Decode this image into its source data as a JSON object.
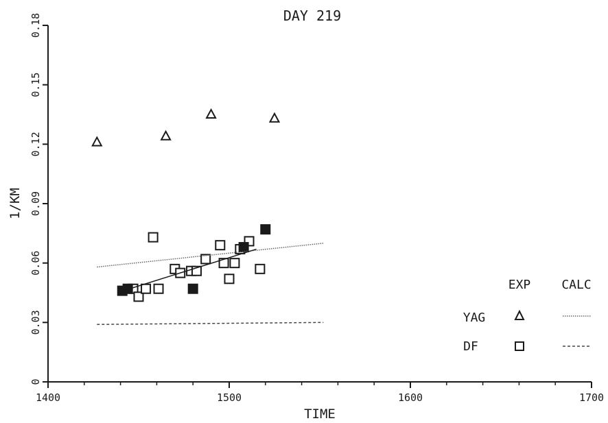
{
  "chart_data": {
    "type": "scatter",
    "title": "DAY 219",
    "xlabel": "TIME",
    "ylabel": "1/KM",
    "xlim": [
      1400,
      1700
    ],
    "ylim": [
      0,
      0.18
    ],
    "x_ticks": [
      1400,
      1500,
      1600,
      1700
    ],
    "y_ticks": [
      "0",
      "0.03",
      "0.06",
      "0.09",
      "0.12",
      "0.15",
      "0.18"
    ],
    "grid": false,
    "legend": {
      "position": "right",
      "headers": [
        "EXP",
        "CALC"
      ],
      "rows": [
        {
          "label": "YAG",
          "marker": "triangle",
          "line": "dotted"
        },
        {
          "label": "DF",
          "marker": "square",
          "line": "dashed"
        }
      ]
    },
    "series": [
      {
        "name": "YAG",
        "kind": "exp",
        "marker": "triangle",
        "x": [
          1427,
          1465,
          1490,
          1525
        ],
        "y": [
          0.121,
          0.124,
          0.135,
          0.133
        ]
      },
      {
        "name": "DF",
        "kind": "exp",
        "marker": "square",
        "x": [
          1447,
          1450,
          1454,
          1458,
          1461,
          1470,
          1473,
          1479,
          1482,
          1487,
          1495,
          1497,
          1500,
          1503,
          1506,
          1511,
          1517
        ],
        "y": [
          0.047,
          0.043,
          0.047,
          0.073,
          0.047,
          0.057,
          0.055,
          0.056,
          0.056,
          0.062,
          0.069,
          0.06,
          0.052,
          0.06,
          0.067,
          0.071,
          0.057
        ]
      },
      {
        "name": "DF",
        "kind": "exp-filled",
        "marker": "filled-square",
        "x": [
          1441,
          1444,
          1480,
          1508,
          1520
        ],
        "y": [
          0.046,
          0.047,
          0.047,
          0.068,
          0.077
        ]
      },
      {
        "name": "YAG",
        "kind": "calc",
        "line": "dotted",
        "x": [
          1427,
          1552
        ],
        "y": [
          0.058,
          0.07
        ]
      },
      {
        "name": "DF",
        "kind": "calc",
        "line": "dashed",
        "x": [
          1427,
          1552
        ],
        "y": [
          0.029,
          0.03
        ]
      },
      {
        "name": "DF",
        "kind": "fit",
        "line": "solid",
        "x": [
          1445,
          1515
        ],
        "y": [
          0.047,
          0.067
        ]
      }
    ]
  }
}
